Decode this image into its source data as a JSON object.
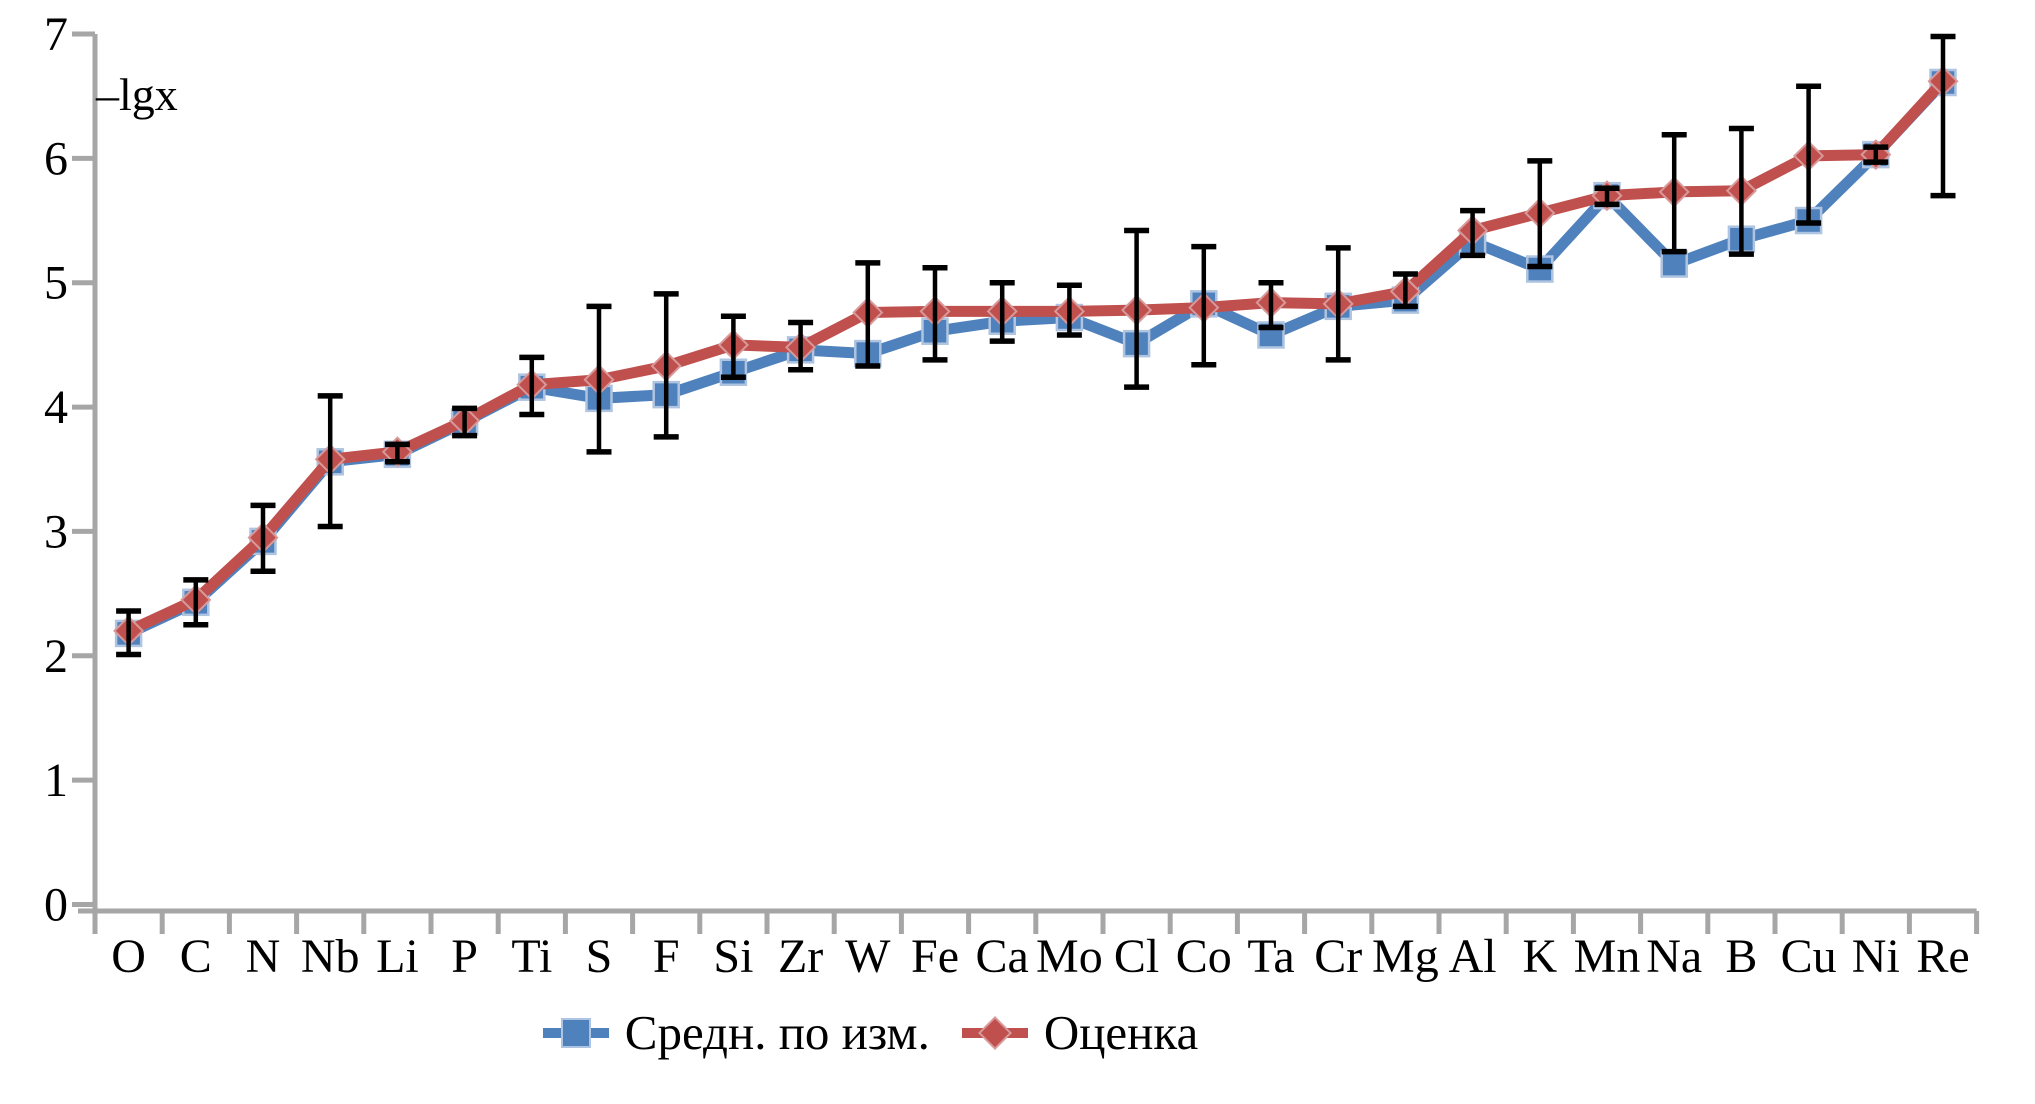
{
  "chart_data": {
    "type": "line",
    "title": "",
    "ylabel": "–lgx",
    "xlabel": "",
    "ylim": [
      0,
      7
    ],
    "yticks": [
      0,
      1,
      2,
      3,
      4,
      5,
      6,
      7
    ],
    "grid": false,
    "legend_position": "bottom",
    "axis_color": "#A6A6A6",
    "error_bar_color": "#000000",
    "categories": [
      "O",
      "C",
      "N",
      "Nb",
      "Li",
      "P",
      "Ti",
      "S",
      "F",
      "Si",
      "Zr",
      "W",
      "Fe",
      "Ca",
      "Mo",
      "Cl",
      "Co",
      "Ta",
      "Cr",
      "Mg",
      "Al",
      "K",
      "Mn",
      "Na",
      "B",
      "Cu",
      "Ni",
      "Re"
    ],
    "series": [
      {
        "name": "Средн. по изм.",
        "color": "#4F81BD",
        "halo_color": "#AEC4E0",
        "marker": "square",
        "values": [
          2.18,
          2.43,
          2.92,
          3.56,
          3.62,
          3.88,
          4.16,
          4.07,
          4.1,
          4.28,
          4.46,
          4.43,
          4.61,
          4.69,
          4.72,
          4.51,
          4.83,
          4.58,
          4.81,
          4.86,
          5.33,
          5.11,
          5.7,
          5.15,
          5.35,
          5.5,
          6.03,
          6.61
        ]
      },
      {
        "name": "Оценка",
        "color": "#C0504D",
        "halo_color": "#D8999A",
        "marker": "diamond",
        "values": [
          2.2,
          2.45,
          2.95,
          3.58,
          3.64,
          3.89,
          4.18,
          4.22,
          4.33,
          4.5,
          4.48,
          4.76,
          4.77,
          4.77,
          4.77,
          4.78,
          4.8,
          4.84,
          4.83,
          4.93,
          5.42,
          5.56,
          5.7,
          5.73,
          5.74,
          6.02,
          6.03,
          6.62
        ],
        "error_low": [
          2.01,
          2.25,
          2.68,
          3.04,
          3.56,
          3.77,
          3.94,
          3.64,
          3.76,
          4.24,
          4.3,
          4.33,
          4.38,
          4.53,
          4.58,
          4.16,
          4.34,
          4.64,
          4.38,
          4.81,
          5.22,
          5.13,
          5.63,
          5.25,
          5.23,
          5.48,
          5.97,
          5.7
        ],
        "error_high": [
          2.36,
          2.61,
          3.21,
          4.09,
          3.7,
          3.99,
          4.4,
          4.81,
          4.91,
          4.73,
          4.68,
          5.16,
          5.12,
          5.0,
          4.98,
          5.42,
          5.29,
          5.0,
          5.28,
          5.07,
          5.58,
          5.98,
          5.76,
          6.19,
          6.24,
          6.58,
          6.09,
          6.98
        ]
      }
    ]
  }
}
